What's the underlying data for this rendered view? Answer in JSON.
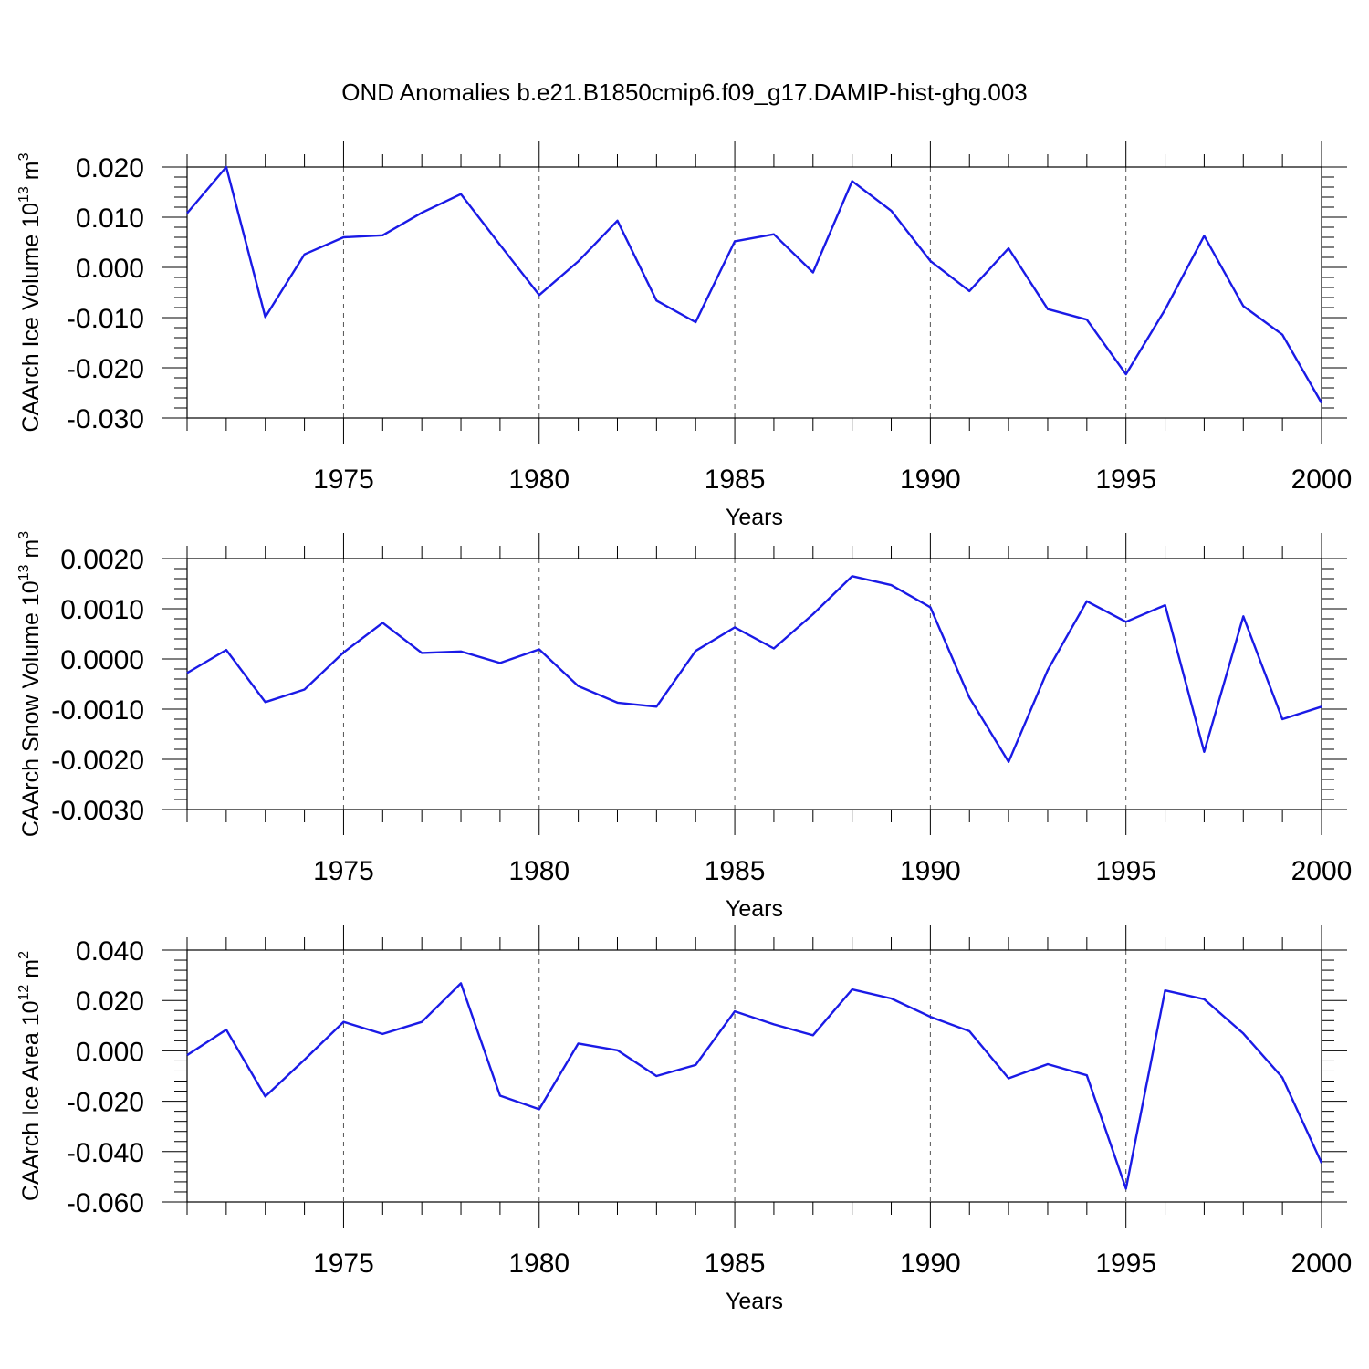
{
  "figure": {
    "title": "OND Anomalies b.e21.B1850cmip6.f09_g17.DAMIP-hist-ghg.003"
  },
  "colors": {
    "line": "#1a1ae6",
    "grid": "#555555",
    "axis": "#000000"
  },
  "chart_data": [
    {
      "type": "line",
      "title": "",
      "xlabel": "Years",
      "ylabel": "CAArch Ice Volume 10",
      "ylabel_exp": "13",
      "ylabel_unit": " m",
      "ylabel_unit_exp": "3",
      "xlim": [
        1971,
        2000
      ],
      "ylim": [
        -0.03,
        0.02
      ],
      "xticks": [
        1975,
        1980,
        1985,
        1990,
        1995,
        2000
      ],
      "yticks": [
        -0.03,
        -0.02,
        -0.01,
        0.0,
        0.01,
        0.02
      ],
      "ytick_labels": [
        "-0.030",
        "-0.020",
        "-0.010",
        "0.000",
        "0.010",
        "0.020"
      ],
      "grid": "x-dashed",
      "x": [
        1971,
        1972,
        1973,
        1974,
        1975,
        1976,
        1977,
        1978,
        1979,
        1980,
        1981,
        1982,
        1983,
        1984,
        1985,
        1986,
        1987,
        1988,
        1989,
        1990,
        1991,
        1992,
        1993,
        1994,
        1995,
        1996,
        1997,
        1998,
        1999,
        2000
      ],
      "series": [
        {
          "values": [
            0.0108,
            0.02,
            -0.0099,
            0.0026,
            0.006,
            0.0064,
            0.0109,
            0.0146,
            0.0045,
            -0.0055,
            0.0012,
            0.0093,
            -0.0066,
            -0.0109,
            0.0052,
            0.0066,
            -0.001,
            0.0172,
            0.0113,
            0.0013,
            -0.0047,
            0.0038,
            -0.0083,
            -0.0104,
            -0.0213,
            -0.0084,
            0.0063,
            -0.0077,
            -0.0134,
            -0.027
          ]
        }
      ]
    },
    {
      "type": "line",
      "title": "",
      "xlabel": "Years",
      "ylabel": "CAArch Snow Volume 10",
      "ylabel_exp": "13",
      "ylabel_unit": " m",
      "ylabel_unit_exp": "3",
      "xlim": [
        1971,
        2000
      ],
      "ylim": [
        -0.003,
        0.002
      ],
      "xticks": [
        1975,
        1980,
        1985,
        1990,
        1995,
        2000
      ],
      "yticks": [
        -0.003,
        -0.002,
        -0.001,
        0.0,
        0.001,
        0.002
      ],
      "ytick_labels": [
        "-0.0030",
        "-0.0020",
        "-0.0010",
        "0.0000",
        "0.0010",
        "0.0020"
      ],
      "grid": "x-dashed",
      "x": [
        1971,
        1972,
        1973,
        1974,
        1975,
        1976,
        1977,
        1978,
        1979,
        1980,
        1981,
        1982,
        1983,
        1984,
        1985,
        1986,
        1987,
        1988,
        1989,
        1990,
        1991,
        1992,
        1993,
        1994,
        1995,
        1996,
        1997,
        1998,
        1999,
        2000
      ],
      "series": [
        {
          "values": [
            -0.00028,
            0.00018,
            -0.00086,
            -0.00061,
            0.00013,
            0.00072,
            0.00012,
            0.00015,
            -8e-05,
            0.00019,
            -0.00054,
            -0.00087,
            -0.00095,
            0.00016,
            0.00063,
            0.00021,
            0.00089,
            0.00165,
            0.00147,
            0.00103,
            -0.00077,
            -0.00205,
            -0.00022,
            0.00115,
            0.00074,
            0.00107,
            -0.00185,
            0.00085,
            -0.0012,
            -0.00095
          ]
        }
      ]
    },
    {
      "type": "line",
      "title": "",
      "xlabel": "Years",
      "ylabel": "CAArch Ice Area 10",
      "ylabel_exp": "12",
      "ylabel_unit": " m",
      "ylabel_unit_exp": "2",
      "xlim": [
        1971,
        2000
      ],
      "ylim": [
        -0.06,
        0.04
      ],
      "xticks": [
        1975,
        1980,
        1985,
        1990,
        1995,
        2000
      ],
      "yticks": [
        -0.06,
        -0.04,
        -0.02,
        0.0,
        0.02,
        0.04
      ],
      "ytick_labels": [
        "-0.060",
        "-0.040",
        "-0.020",
        "0.000",
        "0.020",
        "0.040"
      ],
      "grid": "x-dashed",
      "x": [
        1971,
        1972,
        1973,
        1974,
        1975,
        1976,
        1977,
        1978,
        1979,
        1980,
        1981,
        1982,
        1983,
        1984,
        1985,
        1986,
        1987,
        1988,
        1989,
        1990,
        1991,
        1992,
        1993,
        1994,
        1995,
        1996,
        1997,
        1998,
        1999,
        2000
      ],
      "series": [
        {
          "values": [
            -0.0017,
            0.0084,
            -0.0181,
            -0.0035,
            0.0115,
            0.0067,
            0.0115,
            0.0268,
            -0.0178,
            -0.0232,
            0.0029,
            0.0002,
            -0.01,
            -0.0056,
            0.0157,
            0.0105,
            0.0062,
            0.0244,
            0.0208,
            0.0135,
            0.0078,
            -0.0109,
            -0.0053,
            -0.0097,
            -0.0547,
            0.024,
            0.0205,
            0.0069,
            -0.0106,
            -0.0445
          ]
        }
      ]
    }
  ]
}
